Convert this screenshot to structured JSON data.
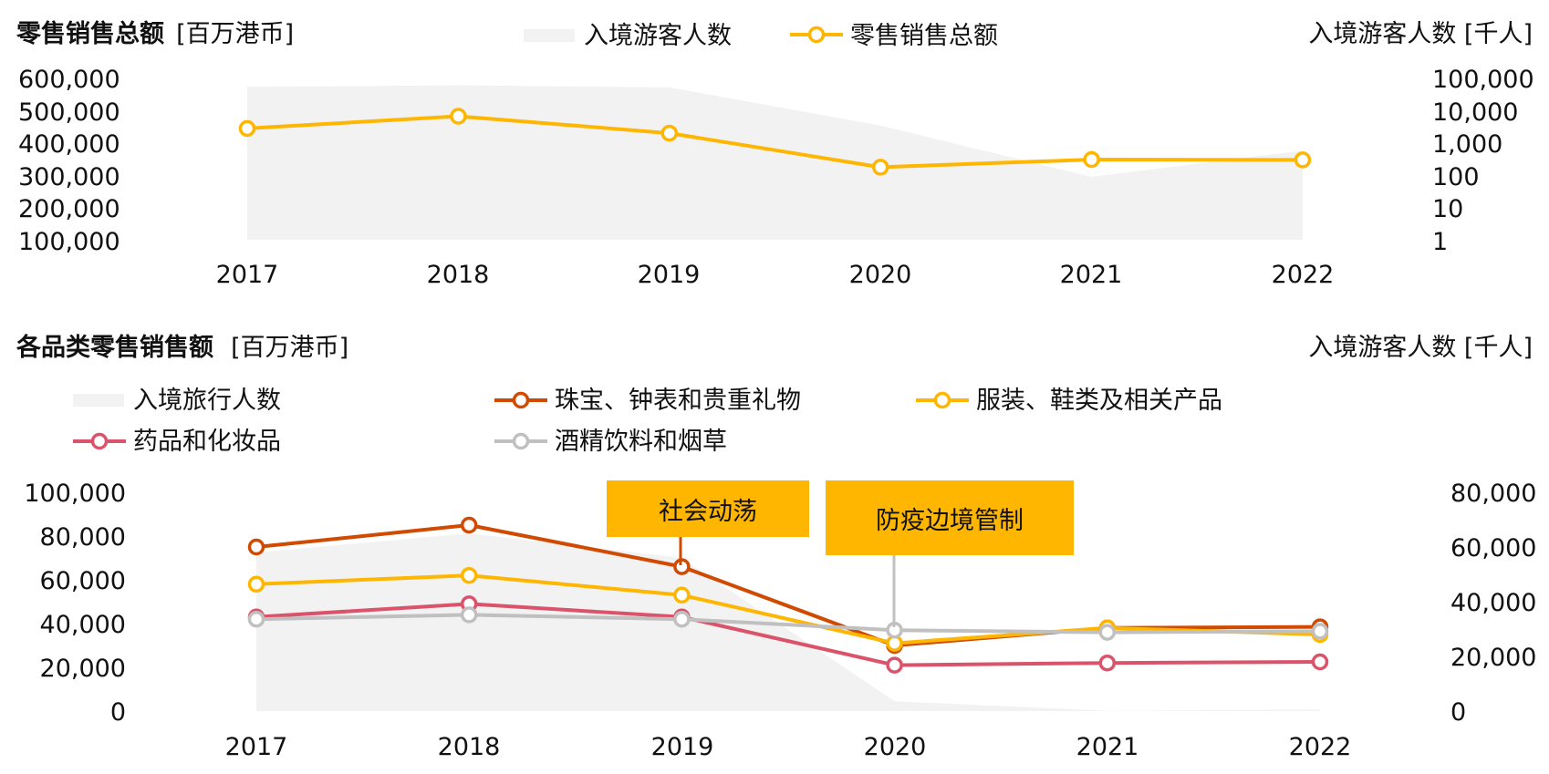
{
  "chart_data": [
    {
      "type": "line",
      "title": "零售销售总额",
      "title_unit": "[百万港币]",
      "y2_title": "入境游客人数 [千人]",
      "x": [
        "2017",
        "2018",
        "2019",
        "2020",
        "2021",
        "2022"
      ],
      "ylim": [
        100000,
        600000
      ],
      "yticks": [
        "600,000",
        "500,000",
        "400,000",
        "300,000",
        "200,000",
        "100,000"
      ],
      "y2_scale": "log",
      "y2lim": [
        1,
        100000
      ],
      "y2ticks": [
        "100,000",
        "10,000",
        "1,000",
        "100",
        "10",
        "1"
      ],
      "legend": [
        "入境游客人数",
        "零售销售总额"
      ],
      "series": [
        {
          "name": "入境游客人数",
          "kind": "area",
          "axis": "right",
          "color": "#f2f2f2",
          "values": [
            58000,
            65000,
            56000,
            3600,
            91,
            600
          ]
        },
        {
          "name": "零售销售总额",
          "kind": "line",
          "axis": "left",
          "color": "#ffb600",
          "values": [
            447000,
            485000,
            432000,
            326000,
            350000,
            349000
          ]
        }
      ]
    },
    {
      "type": "line",
      "title": "各品类零售销售额",
      "title_unit": "[百万港币]",
      "y2_title": "入境游客人数 [千人]",
      "x": [
        "2017",
        "2018",
        "2019",
        "2020",
        "2021",
        "2022"
      ],
      "ylim": [
        0,
        100000
      ],
      "yticks": [
        "100,000",
        "80,000",
        "60,000",
        "40,000",
        "20,000",
        "0"
      ],
      "y2lim": [
        0,
        80000
      ],
      "y2ticks": [
        "80,000",
        "60,000",
        "40,000",
        "20,000",
        "0"
      ],
      "legend": [
        "入境旅行人数",
        "珠宝、钟表和贵重礼物",
        "服装、鞋类及相关产品",
        "药品和化妆品",
        "酒精饮料和烟草"
      ],
      "series": [
        {
          "name": "入境旅行人数",
          "kind": "area",
          "axis": "right",
          "color": "#f2f2f2",
          "values": [
            58000,
            65000,
            56000,
            3600,
            91,
            600
          ]
        },
        {
          "name": "珠宝、钟表和贵重礼物",
          "kind": "line",
          "axis": "left",
          "color": "#d04a02",
          "values": [
            75000,
            85000,
            66000,
            30000,
            38000,
            38500
          ]
        },
        {
          "name": "服装、鞋类及相关产品",
          "kind": "line",
          "axis": "left",
          "color": "#ffb600",
          "values": [
            58000,
            62000,
            53000,
            31000,
            38000,
            35000
          ]
        },
        {
          "name": "药品和化妆品",
          "kind": "line",
          "axis": "left",
          "color": "#db536a",
          "values": [
            43000,
            49000,
            43000,
            21000,
            22000,
            22500
          ]
        },
        {
          "name": "酒精饮料和烟草",
          "kind": "line",
          "axis": "left",
          "color": "#c0c0c0",
          "values": [
            42000,
            44000,
            42000,
            37000,
            36000,
            36500
          ]
        }
      ],
      "annotations": [
        {
          "text": "社会动荡",
          "x": "2019",
          "color": "#ffb600",
          "line_color": "#d04a02"
        },
        {
          "text": "防疫边境管制",
          "x": "2020",
          "color": "#ffb600",
          "line_color": "#c0c0c0"
        }
      ]
    }
  ]
}
